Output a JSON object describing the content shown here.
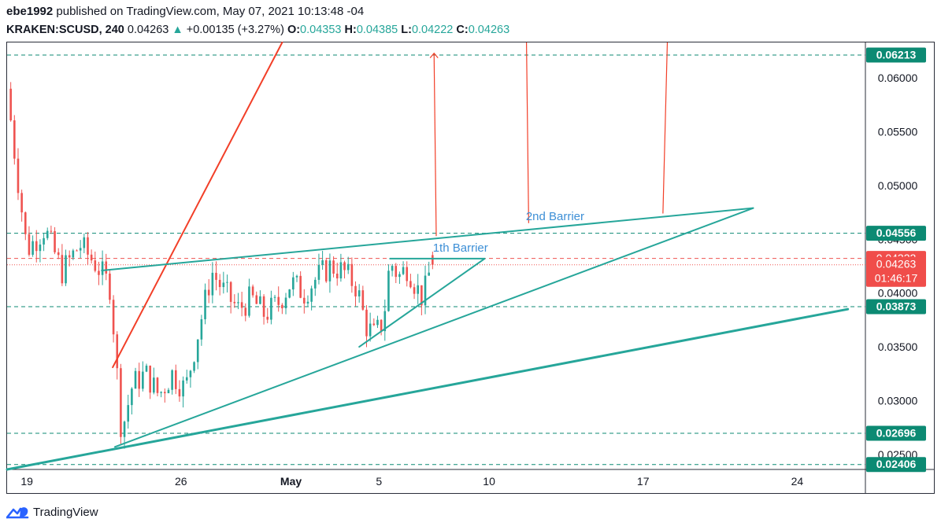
{
  "header": {
    "user": "ebe1992",
    "published": "published on TradingView.com, May 07, 2021 10:13:48 -04",
    "symbol": "KRAKEN:SCUSD, 240",
    "last": "0.04263",
    "change_arrow": "▲",
    "change": "+0.00135 (+3.27%)",
    "o_label": "O:",
    "o_value": "0.04353",
    "h_label": "H:",
    "h_value": "0.04385",
    "l_label": "L:",
    "l_value": "0.04222",
    "c_label": "C:",
    "c_value": "0.04263"
  },
  "footer": {
    "brand": "TradingView",
    "logo_icon": "tradingview-logo-icon"
  },
  "colors": {
    "up": "#26a69a",
    "down": "#ef5350",
    "teal": "#26a69a",
    "red": "#f23f28",
    "label_green": "#0c8a73",
    "label_red": "#f04d4a",
    "annotation_blue": "#3d8fd6"
  },
  "chart_data": {
    "type": "candlestick",
    "symbol": "KRAKEN:SCUSD",
    "interval": "240",
    "ylim": [
      0.0236,
      0.0633
    ],
    "y_ticks": [
      {
        "value": 0.025,
        "label": "0.02500"
      },
      {
        "value": 0.03,
        "label": "0.03000"
      },
      {
        "value": 0.035,
        "label": "0.03500"
      },
      {
        "value": 0.04,
        "label": "0.04000"
      },
      {
        "value": 0.045,
        "label": "0.04500"
      },
      {
        "value": 0.05,
        "label": "0.05000"
      },
      {
        "value": 0.055,
        "label": "0.05500"
      },
      {
        "value": 0.06,
        "label": "0.06000"
      }
    ],
    "x_ticks": [
      {
        "day": 19,
        "label": "19",
        "bold": false
      },
      {
        "day": 26,
        "label": "26",
        "bold": false
      },
      {
        "day": 31,
        "label": "May",
        "bold": true
      },
      {
        "day": 35,
        "label": "5",
        "bold": false
      },
      {
        "day": 40,
        "label": "10",
        "bold": false
      },
      {
        "day": 47,
        "label": "17",
        "bold": false
      },
      {
        "day": 54,
        "label": "24",
        "bold": false
      }
    ],
    "xlim_days": [
      18.1,
      57.1
    ],
    "x_axis_note": "day index: 30 = April 30, 31 = May 1",
    "last_bar_day": 37.5,
    "path_days": [
      18.1,
      18.5,
      19.0,
      19.8,
      20.6,
      21.4,
      22.2,
      22.8,
      23.3,
      23.8,
      24.4,
      25.0,
      25.6,
      26.2,
      26.8,
      27.4,
      28.0,
      28.6,
      29.2,
      29.8,
      30.4,
      31.0,
      31.6,
      32.2,
      32.8,
      33.4,
      34.0,
      34.4,
      34.8,
      35.2,
      35.5,
      35.9,
      36.3,
      36.7,
      37.0,
      37.3,
      37.5
    ],
    "path_prices": [
      0.059,
      0.052,
      0.044,
      0.046,
      0.042,
      0.0445,
      0.0425,
      0.0405,
      0.027,
      0.0315,
      0.0325,
      0.0305,
      0.0325,
      0.031,
      0.0365,
      0.042,
      0.04,
      0.0385,
      0.0395,
      0.038,
      0.039,
      0.041,
      0.04,
      0.0415,
      0.0425,
      0.042,
      0.0405,
      0.037,
      0.036,
      0.0375,
      0.043,
      0.0415,
      0.0425,
      0.0405,
      0.0395,
      0.042,
      0.04263
    ],
    "horizontal_levels": [
      {
        "value": 0.06213,
        "label": "0.06213",
        "style": "dashed",
        "label_color": "green"
      },
      {
        "value": 0.04556,
        "label": "0.04556",
        "style": "dashed",
        "label_color": "green"
      },
      {
        "value": 0.04322,
        "label": "0.04322",
        "style": "dashed",
        "label_color": "red"
      },
      {
        "value": 0.04263,
        "label": "0.04263",
        "style": "dotted",
        "label_color": "red",
        "countdown": "01:46:17"
      },
      {
        "value": 0.03873,
        "label": "0.03873",
        "style": "dashed",
        "label_color": "green"
      },
      {
        "value": 0.02696,
        "label": "0.02696",
        "style": "dashed",
        "label_color": "green"
      },
      {
        "value": 0.02406,
        "label": "0.02406",
        "style": "dashed",
        "label_color": "green"
      }
    ],
    "trendlines": [
      {
        "name": "red-trendline",
        "color": "red",
        "width": 2,
        "from": {
          "day": 22.9,
          "price": 0.0331
        },
        "to": {
          "day": 30.6,
          "price": 0.0633
        }
      },
      {
        "name": "upper-barrier-line",
        "color": "teal",
        "width": 2,
        "from": {
          "day": 22.4,
          "price": 0.0421
        },
        "to": {
          "day": 52.0,
          "price": 0.0479
        }
      },
      {
        "name": "rising-support-line",
        "color": "teal",
        "width": 2,
        "from": {
          "day": 23.0,
          "price": 0.0257
        },
        "to": {
          "day": 52.0,
          "price": 0.0479
        }
      },
      {
        "name": "long-support-line",
        "color": "teal",
        "width": 3,
        "from": {
          "day": 18.1,
          "price": 0.0236
        },
        "to": {
          "day": 56.3,
          "price": 0.0385
        }
      },
      {
        "name": "short-wedge-upper-line",
        "color": "teal",
        "width": 2,
        "from": {
          "day": 35.5,
          "price": 0.0432
        },
        "to": {
          "day": 39.8,
          "price": 0.0432
        }
      },
      {
        "name": "short-wedge-lower-line",
        "color": "teal",
        "width": 2,
        "from": {
          "day": 34.1,
          "price": 0.035
        },
        "to": {
          "day": 39.8,
          "price": 0.0432
        }
      }
    ],
    "arrows": [
      {
        "name": "red-arrow-1",
        "from": {
          "day": 37.6,
          "price": 0.0453
        },
        "to": {
          "day": 37.5,
          "price": 0.0623
        },
        "arrowhead": true
      },
      {
        "name": "red-arrow-2",
        "from": {
          "day": 41.8,
          "price": 0.0465
        },
        "to": {
          "day": 41.7,
          "price": 0.0633
        },
        "arrowhead": false
      },
      {
        "name": "red-arrow-3",
        "from": {
          "day": 47.9,
          "price": 0.0474
        },
        "to": {
          "day": 48.1,
          "price": 0.0633
        },
        "arrowhead": false
      }
    ],
    "annotations": [
      {
        "text": "1th Barrier",
        "day": 38.7,
        "price": 0.0442
      },
      {
        "text": "2nd Barrier",
        "day": 43.0,
        "price": 0.04715
      }
    ]
  }
}
